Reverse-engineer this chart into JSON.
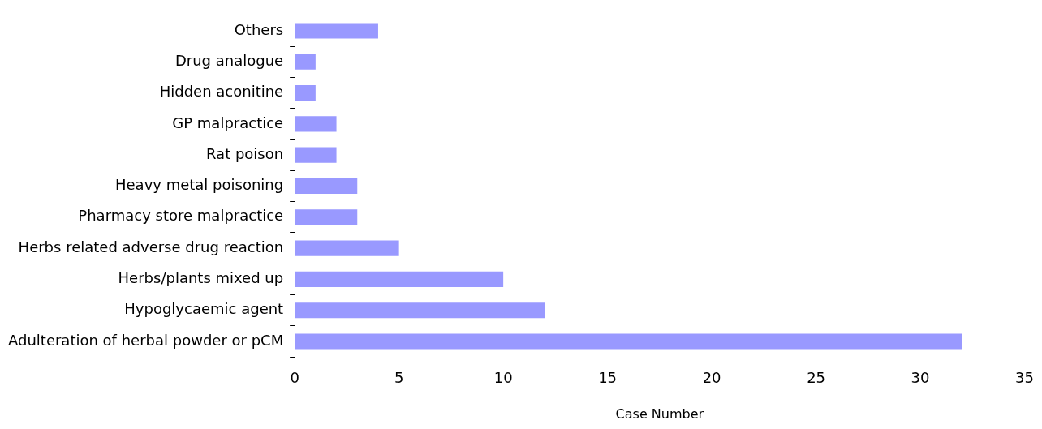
{
  "chart_data": {
    "type": "bar",
    "orientation": "horizontal",
    "xlabel": "Case Number",
    "categories": [
      "Others",
      "Drug analogue",
      "Hidden aconitine",
      "GP malpractice",
      "Rat poison",
      "Heavy metal poisoning",
      "Pharmacy store malpractice",
      "Herbs related adverse drug reaction",
      "Herbs/plants mixed up",
      "Hypoglycaemic agent",
      "Adulteration of herbal powder or pCM"
    ],
    "values": [
      4,
      1,
      1,
      2,
      2,
      3,
      3,
      5,
      10,
      12,
      32
    ],
    "color": "#9999ff",
    "xlim": [
      0,
      35
    ],
    "xticks": [
      0,
      5,
      10,
      15,
      20,
      25,
      30,
      35
    ],
    "grid": false,
    "legend": false
  }
}
